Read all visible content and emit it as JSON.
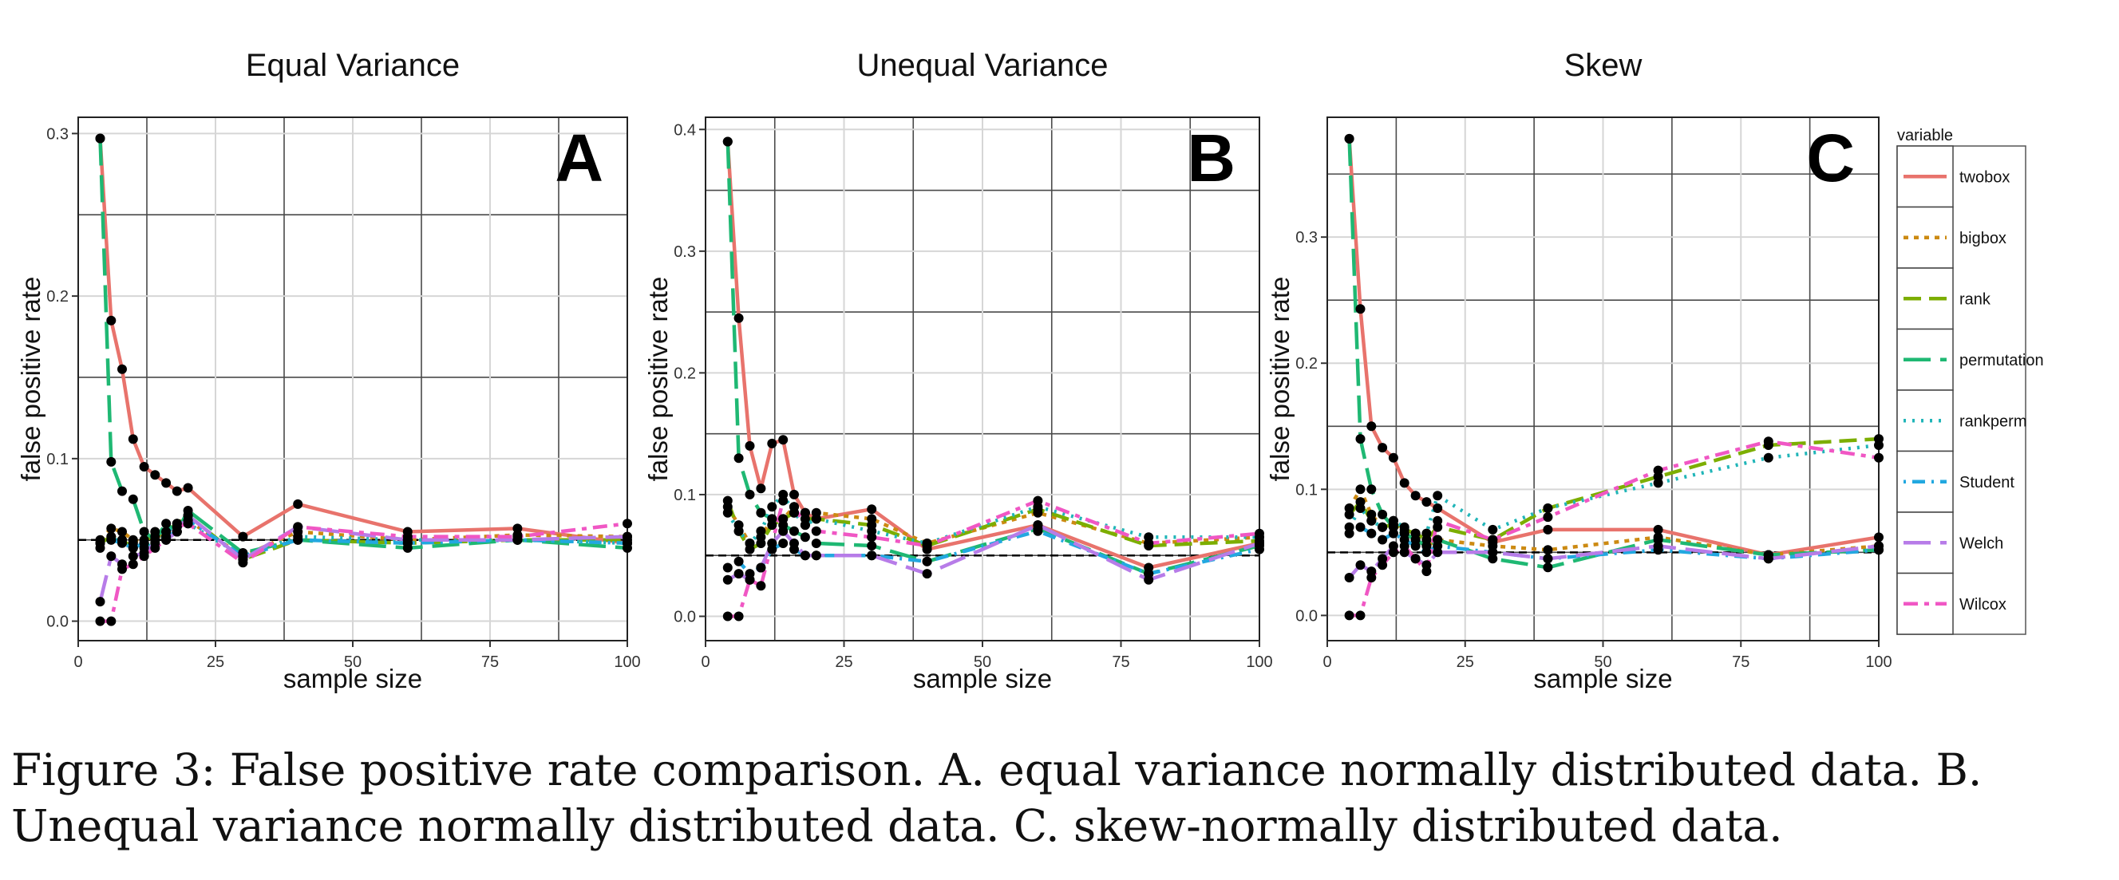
{
  "caption": "Figure 3: False positive rate comparison. A. equal variance normally distributed data. B. Unequal variance normally distributed data. C. skew-normally distributed data.",
  "legend": {
    "title": "variable",
    "items": [
      {
        "name": "twobox",
        "color": "#E8736C",
        "dash": "solid"
      },
      {
        "name": "bigbox",
        "color": "#CC8A12",
        "dash": "dotted-short"
      },
      {
        "name": "rank",
        "color": "#7CAE00",
        "dash": "dashed"
      },
      {
        "name": "permutation",
        "color": "#1FB873",
        "dash": "longdash"
      },
      {
        "name": "rankperm",
        "color": "#20B5B8",
        "dash": "dotted"
      },
      {
        "name": "Student",
        "color": "#22A8E0",
        "dash": "dotdash"
      },
      {
        "name": "Welch",
        "color": "#B77CE8",
        "dash": "longdash"
      },
      {
        "name": "Wilcox",
        "color": "#F057C4",
        "dash": "twodash"
      }
    ]
  },
  "chart_data": [
    {
      "type": "line",
      "title": "Equal Variance",
      "panel_label": "A",
      "xlabel": "sample size",
      "ylabel": "false positive rate",
      "xlim": [
        0,
        100
      ],
      "ylim": [
        -0.012,
        0.31
      ],
      "xticks": [
        0,
        25,
        50,
        75,
        100
      ],
      "yticks": [
        0.0,
        0.1,
        0.2,
        0.3
      ],
      "ytick_labels": [
        "0.0",
        "0.1",
        "0.2",
        "0.3"
      ],
      "reference_line": 0.05,
      "x": [
        4,
        6,
        8,
        10,
        12,
        14,
        16,
        18,
        20,
        30,
        40,
        60,
        80,
        100
      ],
      "series": [
        {
          "name": "twobox",
          "values": [
            0.297,
            0.185,
            0.155,
            0.112,
            0.095,
            0.09,
            0.085,
            0.08,
            0.082,
            0.052,
            0.072,
            0.055,
            0.057,
            0.048
          ]
        },
        {
          "name": "bigbox",
          "values": [
            0.05,
            0.057,
            0.055,
            0.05,
            0.048,
            0.055,
            0.05,
            0.06,
            0.062,
            0.04,
            0.055,
            0.05,
            0.053,
            0.052
          ]
        },
        {
          "name": "rank",
          "values": [
            0.048,
            0.052,
            0.05,
            0.045,
            0.05,
            0.052,
            0.055,
            0.06,
            0.065,
            0.038,
            0.05,
            0.048,
            0.05,
            0.05
          ]
        },
        {
          "name": "permutation",
          "values": [
            0.297,
            0.098,
            0.08,
            0.075,
            0.055,
            0.05,
            0.06,
            0.055,
            0.068,
            0.042,
            0.05,
            0.045,
            0.05,
            0.045
          ]
        },
        {
          "name": "rankperm",
          "values": [
            0.045,
            0.05,
            0.05,
            0.048,
            0.045,
            0.05,
            0.055,
            0.058,
            0.06,
            0.04,
            0.052,
            0.05,
            0.05,
            0.048
          ]
        },
        {
          "name": "Student",
          "values": [
            0.048,
            0.05,
            0.048,
            0.045,
            0.048,
            0.05,
            0.052,
            0.055,
            0.062,
            0.04,
            0.05,
            0.048,
            0.05,
            0.048
          ]
        },
        {
          "name": "Welch",
          "values": [
            0.012,
            0.04,
            0.035,
            0.04,
            0.042,
            0.048,
            0.05,
            0.055,
            0.065,
            0.038,
            0.058,
            0.05,
            0.05,
            0.052
          ]
        },
        {
          "name": "Wilcox",
          "values": [
            0.0,
            0.0,
            0.032,
            0.035,
            0.04,
            0.045,
            0.05,
            0.058,
            0.06,
            0.036,
            0.058,
            0.052,
            0.052,
            0.06
          ]
        }
      ]
    },
    {
      "type": "line",
      "title": "Unequal Variance",
      "panel_label": "B",
      "xlabel": "sample size",
      "ylabel": "false positive rate",
      "xlim": [
        0,
        100
      ],
      "ylim": [
        -0.02,
        0.41
      ],
      "xticks": [
        0,
        25,
        50,
        75,
        100
      ],
      "yticks": [
        0.0,
        0.1,
        0.2,
        0.3,
        0.4
      ],
      "ytick_labels": [
        "0.0",
        "0.1",
        "0.2",
        "0.3",
        "0.4"
      ],
      "reference_line": 0.05,
      "x": [
        4,
        6,
        8,
        10,
        12,
        14,
        16,
        18,
        20,
        30,
        40,
        60,
        80,
        100
      ],
      "series": [
        {
          "name": "twobox",
          "values": [
            0.39,
            0.245,
            0.14,
            0.105,
            0.142,
            0.145,
            0.1,
            0.085,
            0.08,
            0.088,
            0.055,
            0.075,
            0.04,
            0.06
          ]
        },
        {
          "name": "bigbox",
          "values": [
            0.09,
            0.075,
            0.06,
            0.065,
            0.08,
            0.08,
            0.09,
            0.085,
            0.085,
            0.08,
            0.06,
            0.085,
            0.06,
            0.065
          ]
        },
        {
          "name": "rank",
          "values": [
            0.095,
            0.07,
            0.055,
            0.06,
            0.075,
            0.08,
            0.085,
            0.08,
            0.08,
            0.075,
            0.058,
            0.088,
            0.058,
            0.062
          ]
        },
        {
          "name": "permutation",
          "values": [
            0.39,
            0.13,
            0.1,
            0.085,
            0.08,
            0.075,
            0.07,
            0.065,
            0.06,
            0.058,
            0.045,
            0.072,
            0.035,
            0.058
          ]
        },
        {
          "name": "rankperm",
          "values": [
            0.085,
            0.07,
            0.06,
            0.07,
            0.09,
            0.1,
            0.085,
            0.075,
            0.08,
            0.07,
            0.06,
            0.09,
            0.065,
            0.065
          ]
        },
        {
          "name": "Student",
          "values": [
            0.04,
            0.045,
            0.035,
            0.04,
            0.055,
            0.06,
            0.055,
            0.05,
            0.05,
            0.05,
            0.045,
            0.07,
            0.035,
            0.055
          ]
        },
        {
          "name": "Welch",
          "values": [
            0.03,
            0.035,
            0.03,
            0.04,
            0.06,
            0.07,
            0.06,
            0.05,
            0.05,
            0.05,
            0.035,
            0.075,
            0.03,
            0.06
          ]
        },
        {
          "name": "Wilcox",
          "values": [
            0.0,
            0.0,
            0.03,
            0.025,
            0.06,
            0.095,
            0.09,
            0.075,
            0.07,
            0.065,
            0.058,
            0.095,
            0.06,
            0.068
          ]
        }
      ]
    },
    {
      "type": "line",
      "title": "Skew",
      "panel_label": "C",
      "xlabel": "sample size",
      "ylabel": "false positive rate",
      "xlim": [
        0,
        100
      ],
      "ylim": [
        -0.02,
        0.395
      ],
      "xticks": [
        0,
        25,
        50,
        75,
        100
      ],
      "yticks": [
        0.0,
        0.1,
        0.2,
        0.3
      ],
      "ytick_labels": [
        "0.0",
        "0.1",
        "0.2",
        "0.3"
      ],
      "reference_line": 0.05,
      "x": [
        4,
        6,
        8,
        10,
        12,
        14,
        16,
        18,
        20,
        30,
        40,
        60,
        80,
        100
      ],
      "series": [
        {
          "name": "twobox",
          "values": [
            0.378,
            0.243,
            0.15,
            0.133,
            0.125,
            0.105,
            0.095,
            0.09,
            0.085,
            0.058,
            0.068,
            0.068,
            0.048,
            0.062
          ]
        },
        {
          "name": "bigbox",
          "values": [
            0.085,
            0.1,
            0.08,
            0.07,
            0.075,
            0.065,
            0.06,
            0.055,
            0.06,
            0.055,
            0.052,
            0.062,
            0.048,
            0.055
          ]
        },
        {
          "name": "rank",
          "values": [
            0.08,
            0.09,
            0.075,
            0.07,
            0.072,
            0.068,
            0.065,
            0.06,
            0.07,
            0.06,
            0.085,
            0.11,
            0.135,
            0.14
          ]
        },
        {
          "name": "permutation",
          "values": [
            0.378,
            0.14,
            0.1,
            0.08,
            0.07,
            0.065,
            0.06,
            0.055,
            0.06,
            0.045,
            0.038,
            0.06,
            0.048,
            0.052
          ]
        },
        {
          "name": "rankperm",
          "values": [
            0.07,
            0.085,
            0.075,
            0.07,
            0.075,
            0.07,
            0.065,
            0.065,
            0.095,
            0.068,
            0.085,
            0.105,
            0.125,
            0.135
          ]
        },
        {
          "name": "Student",
          "values": [
            0.065,
            0.07,
            0.065,
            0.06,
            0.065,
            0.06,
            0.055,
            0.05,
            0.055,
            0.05,
            0.045,
            0.052,
            0.045,
            0.052
          ]
        },
        {
          "name": "Welch",
          "values": [
            0.03,
            0.04,
            0.035,
            0.045,
            0.055,
            0.05,
            0.045,
            0.04,
            0.05,
            0.05,
            0.045,
            0.055,
            0.045,
            0.055
          ]
        },
        {
          "name": "Wilcox",
          "values": [
            0.0,
            0.0,
            0.03,
            0.04,
            0.05,
            0.055,
            0.045,
            0.035,
            0.075,
            0.06,
            0.078,
            0.115,
            0.138,
            0.125
          ]
        }
      ]
    }
  ]
}
